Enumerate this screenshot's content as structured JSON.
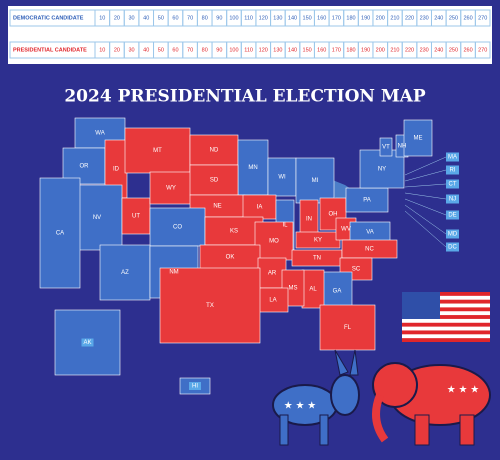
{
  "title": "2024 PRESIDENTIAL ELECTION MAP",
  "tally": {
    "rows": [
      {
        "label": "DEMOCRATIC CANDIDATE",
        "color": "#2f5fb8",
        "values": [
          10,
          20,
          30,
          40,
          50,
          60,
          70,
          80,
          90,
          100,
          110,
          120,
          130,
          140,
          150,
          160,
          170,
          180,
          190,
          200,
          210,
          220,
          230,
          240,
          250,
          260,
          270
        ]
      },
      {
        "label": "PRESIDENTIAL CANDIDATE",
        "color": "#e0262b",
        "values": [
          10,
          20,
          30,
          40,
          50,
          60,
          70,
          80,
          90,
          100,
          110,
          120,
          130,
          140,
          150,
          160,
          170,
          180,
          190,
          200,
          210,
          220,
          230,
          240,
          250,
          260,
          270
        ]
      }
    ]
  },
  "states": [
    {
      "label": "WA",
      "color": "#3f6fc7"
    },
    {
      "label": "OR",
      "color": "#3f6fc7"
    },
    {
      "label": "ID",
      "color": "#e8393b"
    },
    {
      "label": "MT",
      "color": "#e8393b"
    },
    {
      "label": "ND",
      "color": "#e8393b"
    },
    {
      "label": "MN",
      "color": "#3f6fc7"
    },
    {
      "label": "WI",
      "color": "#3f6fc7"
    },
    {
      "label": "MI",
      "color": "#3f6fc7"
    },
    {
      "label": "NV",
      "color": "#3f6fc7"
    },
    {
      "label": "CA",
      "color": "#3f6fc7"
    },
    {
      "label": "UT",
      "color": "#e8393b"
    },
    {
      "label": "WY",
      "color": "#e8393b"
    },
    {
      "label": "SD",
      "color": "#e8393b"
    },
    {
      "label": "NE",
      "color": "#e8393b"
    },
    {
      "label": "IA",
      "color": "#e8393b"
    },
    {
      "label": "IL",
      "color": "#3f6fc7"
    },
    {
      "label": "IN",
      "color": "#e8393b"
    },
    {
      "label": "OH",
      "color": "#e8393b"
    },
    {
      "label": "PA",
      "color": "#3f6fc7"
    },
    {
      "label": "NY",
      "color": "#3f6fc7"
    },
    {
      "label": "VT",
      "color": "#3f6fc7"
    },
    {
      "label": "NH",
      "color": "#3f6fc7"
    },
    {
      "label": "ME",
      "color": "#3f6fc7"
    },
    {
      "label": "CO",
      "color": "#3f6fc7"
    },
    {
      "label": "KS",
      "color": "#e8393b"
    },
    {
      "label": "MO",
      "color": "#e8393b"
    },
    {
      "label": "KY",
      "color": "#e8393b"
    },
    {
      "label": "WV",
      "color": "#e8393b"
    },
    {
      "label": "VA",
      "color": "#3f6fc7"
    },
    {
      "label": "AZ",
      "color": "#3f6fc7"
    },
    {
      "label": "NM",
      "color": "#3f6fc7"
    },
    {
      "label": "OK",
      "color": "#e8393b"
    },
    {
      "label": "AR",
      "color": "#e8393b"
    },
    {
      "label": "TN",
      "color": "#e8393b"
    },
    {
      "label": "NC",
      "color": "#e8393b"
    },
    {
      "label": "SC",
      "color": "#e8393b"
    },
    {
      "label": "GA",
      "color": "#3f6fc7"
    },
    {
      "label": "AL",
      "color": "#e8393b"
    },
    {
      "label": "MS",
      "color": "#e8393b"
    },
    {
      "label": "LA",
      "color": "#e8393b"
    },
    {
      "label": "TX",
      "color": "#e8393b"
    },
    {
      "label": "FL",
      "color": "#e8393b"
    },
    {
      "label": "AK",
      "color": "#3f6fc7"
    },
    {
      "label": "HI",
      "color": "#3f6fc7"
    }
  ],
  "small_states": [
    {
      "label": "MA"
    },
    {
      "label": "RI"
    },
    {
      "label": "CT"
    },
    {
      "label": "NJ"
    },
    {
      "label": "DE"
    },
    {
      "label": "MD"
    },
    {
      "label": "DC"
    }
  ]
}
